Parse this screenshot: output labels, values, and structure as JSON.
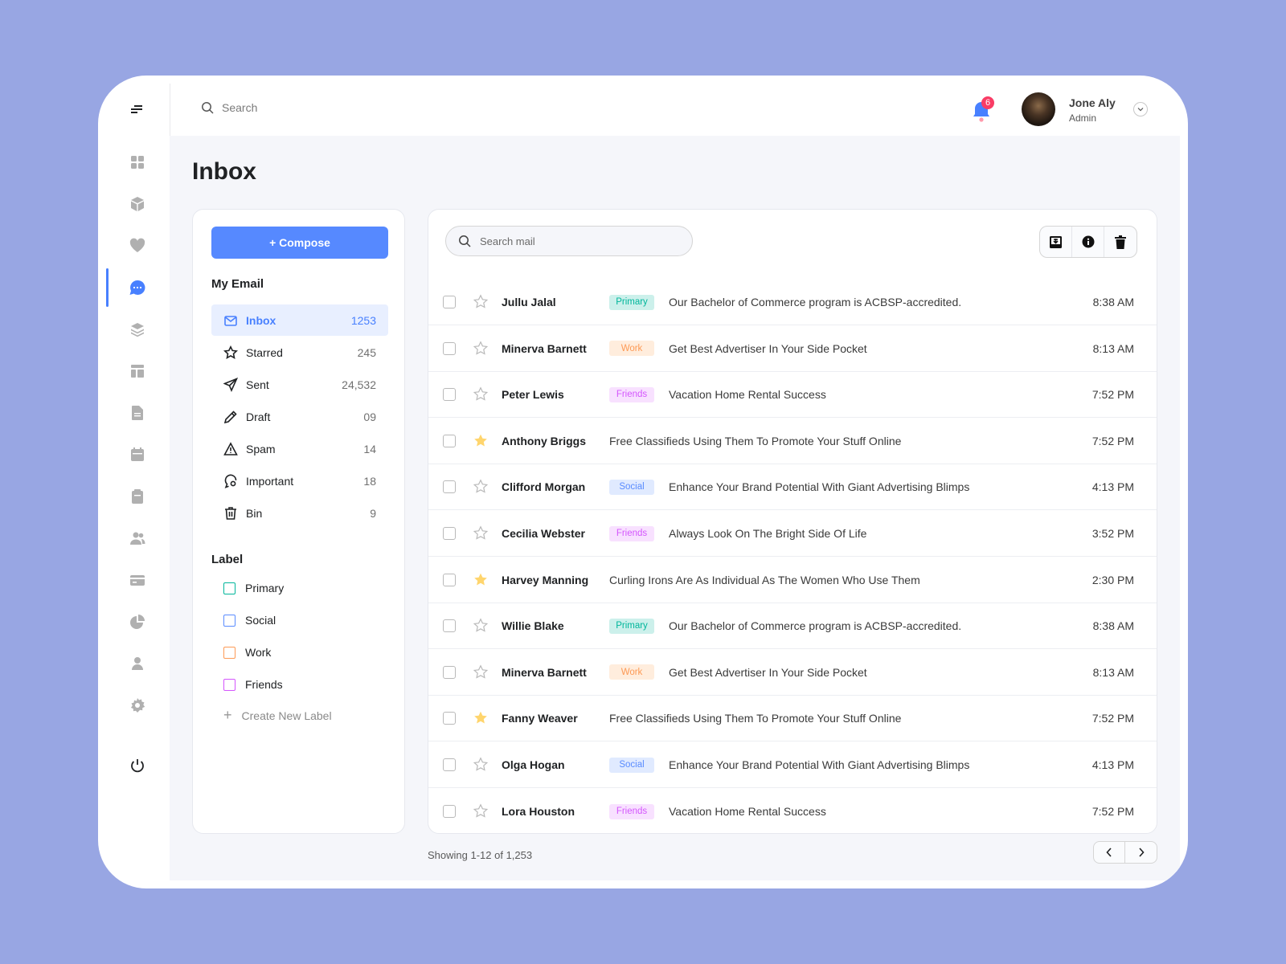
{
  "header": {
    "search_placeholder": "Search",
    "notification_count": "6",
    "user_name": "Jone Aly",
    "user_role": "Admin"
  },
  "page_title": "Inbox",
  "compose_label": "+ Compose",
  "my_email_heading": "My Email",
  "folders": [
    {
      "label": "Inbox",
      "count": "1253",
      "icon": "mail-icon",
      "active": true
    },
    {
      "label": "Starred",
      "count": "245",
      "icon": "star-icon"
    },
    {
      "label": "Sent",
      "count": "24,532",
      "icon": "send-icon"
    },
    {
      "label": "Draft",
      "count": "09",
      "icon": "pencil-icon"
    },
    {
      "label": "Spam",
      "count": "14",
      "icon": "warning-icon"
    },
    {
      "label": "Important",
      "count": "18",
      "icon": "important-icon"
    },
    {
      "label": "Bin",
      "count": "9",
      "icon": "trash-icon"
    }
  ],
  "label_heading": "Label",
  "labels": [
    {
      "label": "Primary",
      "color": "#00b69b"
    },
    {
      "label": "Social",
      "color": "#5a8cff"
    },
    {
      "label": "Work",
      "color": "#fd9a56"
    },
    {
      "label": "Friends",
      "color": "#d456fd"
    }
  ],
  "create_label": "Create New Label",
  "search_mail_placeholder": "Search mail",
  "tag_styles": {
    "Primary": {
      "bg": "#ccf0eb",
      "fg": "#00b69b"
    },
    "Work": {
      "bg": "#ffeddd",
      "fg": "#fd9a56"
    },
    "Friends": {
      "bg": "#f8e1ff",
      "fg": "#d456fd"
    },
    "Social": {
      "bg": "#e0eaff",
      "fg": "#5a8cff"
    }
  },
  "emails": [
    {
      "sender": "Jullu Jalal",
      "tag": "Primary",
      "subject": "Our Bachelor of Commerce program is ACBSP-accredited.",
      "time": "8:38 AM",
      "starred": false
    },
    {
      "sender": "Minerva Barnett",
      "tag": "Work",
      "subject": "Get Best Advertiser In Your Side Pocket",
      "time": "8:13 AM",
      "starred": false
    },
    {
      "sender": "Peter Lewis",
      "tag": "Friends",
      "subject": "Vacation Home Rental Success",
      "time": "7:52 PM",
      "starred": false
    },
    {
      "sender": "Anthony Briggs",
      "tag": "",
      "subject": "Free Classifieds Using Them To Promote Your Stuff Online",
      "time": "7:52 PM",
      "starred": true
    },
    {
      "sender": "Clifford Morgan",
      "tag": "Social",
      "subject": "Enhance Your Brand Potential With Giant Advertising Blimps",
      "time": "4:13 PM",
      "starred": false
    },
    {
      "sender": "Cecilia Webster",
      "tag": "Friends",
      "subject": "Always Look On The Bright Side Of Life",
      "time": "3:52 PM",
      "starred": false
    },
    {
      "sender": "Harvey Manning",
      "tag": "",
      "subject": "Curling Irons Are As Individual As The Women Who Use Them",
      "time": "2:30 PM",
      "starred": true
    },
    {
      "sender": "Willie Blake",
      "tag": "Primary",
      "subject": "Our Bachelor of Commerce program is ACBSP-accredited.",
      "time": "8:38 AM",
      "starred": false
    },
    {
      "sender": "Minerva Barnett",
      "tag": "Work",
      "subject": "Get Best Advertiser In Your Side Pocket",
      "time": "8:13 AM",
      "starred": false
    },
    {
      "sender": "Fanny Weaver",
      "tag": "",
      "subject": "Free Classifieds Using Them To Promote Your Stuff Online",
      "time": "7:52 PM",
      "starred": true
    },
    {
      "sender": "Olga Hogan",
      "tag": "Social",
      "subject": "Enhance Your Brand Potential With Giant Advertising Blimps",
      "time": "4:13 PM",
      "starred": false
    },
    {
      "sender": "Lora Houston",
      "tag": "Friends",
      "subject": "Vacation Home Rental Success",
      "time": "7:52 PM",
      "starred": false
    }
  ],
  "footer": {
    "showing": "Showing 1-12 of 1,253"
  },
  "colors": {
    "accent": "#4880ff",
    "star": "#ffd56d",
    "badge": "#f93c65"
  }
}
